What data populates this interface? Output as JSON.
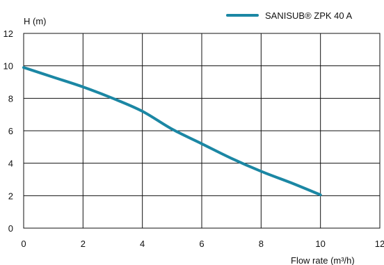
{
  "chart_data": {
    "type": "line",
    "title": "",
    "ylabel": "H (m)",
    "xlabel": "Flow rate (m³/h)",
    "xlim": [
      0,
      12
    ],
    "ylim": [
      0,
      12
    ],
    "x_ticks": [
      "0",
      "2",
      "4",
      "6",
      "8",
      "10",
      "12"
    ],
    "y_ticks": [
      "0",
      "2",
      "4",
      "6",
      "8",
      "10",
      "12"
    ],
    "grid": true,
    "legend_position": "top-right",
    "series": [
      {
        "name": "SANISUB® ZPK 40 A",
        "color": "#1b87a4",
        "x": [
          0,
          1,
          2,
          3,
          4,
          5,
          6,
          7,
          8,
          9,
          10
        ],
        "y": [
          9.9,
          9.3,
          8.7,
          8.0,
          7.2,
          6.1,
          5.2,
          4.3,
          3.5,
          2.8,
          2.05
        ]
      }
    ]
  }
}
